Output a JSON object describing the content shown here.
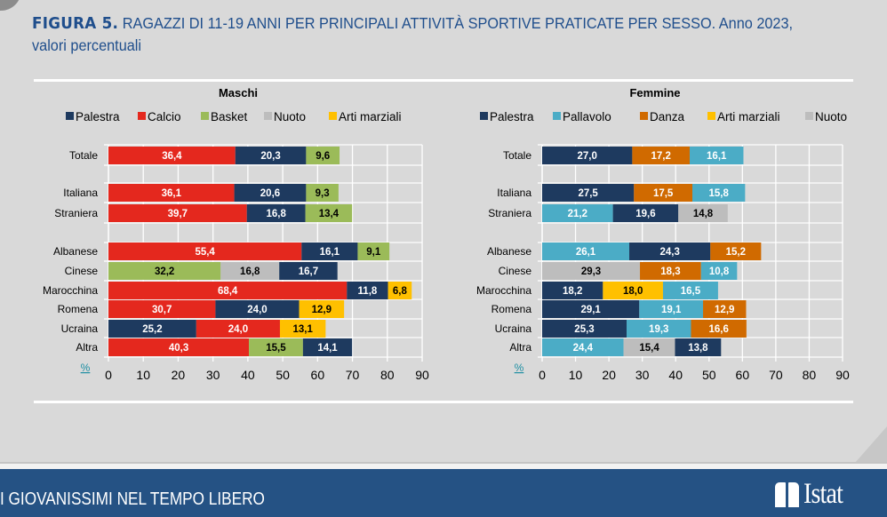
{
  "header": {
    "figure_label": "FIGURA 5.",
    "title_caps": "RAGAZZI DI 11-19 ANNI PER PRINCIPALI ATTIVITÀ SPORTIVE PRATICATE PER SESSO.",
    "title_tail": "Anno 2023,",
    "subtitle": "valori percentuali"
  },
  "footer": {
    "section_title": "I GIOVANISSIMI NEL TEMPO LIBERO",
    "logo_text": "Istat"
  },
  "colors": {
    "title": "#1f4e8c",
    "footer_bg": "#255284",
    "Palestra": "#1e3a5f",
    "Calcio": "#e4281e",
    "Basket": "#9bbb59",
    "Nuoto": "#bdbdbd",
    "Arti marziali": "#ffc000",
    "Pallavolo": "#4bacc6",
    "Danza": "#d06a00"
  },
  "chart_data": [
    {
      "type": "bar",
      "orientation": "horizontal",
      "stacked": true,
      "title": "Maschi",
      "legend": [
        "Palestra",
        "Calcio",
        "Basket",
        "Nuoto",
        "Arti marziali"
      ],
      "legend_position": "top",
      "xlabel": "%",
      "xlim": [
        0,
        90
      ],
      "xticks": [
        0,
        10,
        20,
        30,
        40,
        50,
        60,
        70,
        80,
        90
      ],
      "grid": true,
      "categories": [
        "Totale",
        "",
        "Italiana",
        "Straniera",
        "",
        "Albanese",
        "Cinese",
        "Marocchina",
        "Romena",
        "Ucraina",
        "Altra"
      ],
      "rows": [
        {
          "category": "Totale",
          "segments": [
            {
              "series": "Calcio",
              "value": 36.4,
              "label": "36,4"
            },
            {
              "series": "Palestra",
              "value": 20.3,
              "label": "20,3"
            },
            {
              "series": "Basket",
              "value": 9.6,
              "label": "9,6"
            }
          ]
        },
        {
          "category": "",
          "segments": []
        },
        {
          "category": "Italiana",
          "segments": [
            {
              "series": "Calcio",
              "value": 36.1,
              "label": "36,1"
            },
            {
              "series": "Palestra",
              "value": 20.6,
              "label": "20,6"
            },
            {
              "series": "Basket",
              "value": 9.3,
              "label": "9,3"
            }
          ]
        },
        {
          "category": "Straniera",
          "segments": [
            {
              "series": "Calcio",
              "value": 39.7,
              "label": "39,7"
            },
            {
              "series": "Palestra",
              "value": 16.8,
              "label": "16,8"
            },
            {
              "series": "Basket",
              "value": 13.4,
              "label": "13,4"
            }
          ]
        },
        {
          "category": "",
          "segments": []
        },
        {
          "category": "Albanese",
          "segments": [
            {
              "series": "Calcio",
              "value": 55.4,
              "label": "55,4"
            },
            {
              "series": "Palestra",
              "value": 16.1,
              "label": "16,1"
            },
            {
              "series": "Basket",
              "value": 9.1,
              "label": "9,1"
            }
          ]
        },
        {
          "category": "Cinese",
          "segments": [
            {
              "series": "Basket",
              "value": 32.2,
              "label": "32,2"
            },
            {
              "series": "Nuoto",
              "value": 16.8,
              "label": "16,8"
            },
            {
              "series": "Palestra",
              "value": 16.7,
              "label": "16,7"
            }
          ]
        },
        {
          "category": "Marocchina",
          "segments": [
            {
              "series": "Calcio",
              "value": 68.4,
              "label": "68,4"
            },
            {
              "series": "Palestra",
              "value": 11.8,
              "label": "11,8"
            },
            {
              "series": "Arti marziali",
              "value": 6.8,
              "label": "6,8"
            }
          ]
        },
        {
          "category": "Romena",
          "segments": [
            {
              "series": "Calcio",
              "value": 30.7,
              "label": "30,7"
            },
            {
              "series": "Palestra",
              "value": 24.0,
              "label": "24,0"
            },
            {
              "series": "Arti marziali",
              "value": 12.9,
              "label": "12,9"
            }
          ]
        },
        {
          "category": "Ucraina",
          "segments": [
            {
              "series": "Palestra",
              "value": 25.2,
              "label": "25,2"
            },
            {
              "series": "Calcio",
              "value": 24.0,
              "label": "24,0"
            },
            {
              "series": "Arti marziali",
              "value": 13.1,
              "label": "13,1"
            }
          ]
        },
        {
          "category": "Altra",
          "segments": [
            {
              "series": "Calcio",
              "value": 40.3,
              "label": "40,3"
            },
            {
              "series": "Basket",
              "value": 15.5,
              "label": "15,5"
            },
            {
              "series": "Palestra",
              "value": 14.1,
              "label": "14,1"
            }
          ]
        }
      ]
    },
    {
      "type": "bar",
      "orientation": "horizontal",
      "stacked": true,
      "title": "Femmine",
      "legend": [
        "Palestra",
        "Pallavolo",
        "Danza",
        "Arti marziali",
        "Nuoto"
      ],
      "legend_position": "top",
      "xlabel": "%",
      "xlim": [
        0,
        90
      ],
      "xticks": [
        0,
        10,
        20,
        30,
        40,
        50,
        60,
        70,
        80,
        90
      ],
      "grid": true,
      "categories": [
        "Totale",
        "",
        "Italiana",
        "Straniera",
        "",
        "Albanese",
        "Cinese",
        "Marocchina",
        "Romena",
        "Ucraina",
        "Altra"
      ],
      "rows": [
        {
          "category": "Totale",
          "segments": [
            {
              "series": "Palestra",
              "value": 27.0,
              "label": "27,0"
            },
            {
              "series": "Danza",
              "value": 17.2,
              "label": "17,2"
            },
            {
              "series": "Pallavolo",
              "value": 16.1,
              "label": "16,1"
            }
          ]
        },
        {
          "category": "",
          "segments": []
        },
        {
          "category": "Italiana",
          "segments": [
            {
              "series": "Palestra",
              "value": 27.5,
              "label": "27,5"
            },
            {
              "series": "Danza",
              "value": 17.5,
              "label": "17,5"
            },
            {
              "series": "Pallavolo",
              "value": 15.8,
              "label": "15,8"
            }
          ]
        },
        {
          "category": "Straniera",
          "segments": [
            {
              "series": "Pallavolo",
              "value": 21.2,
              "label": "21,2"
            },
            {
              "series": "Palestra",
              "value": 19.6,
              "label": "19,6"
            },
            {
              "series": "Nuoto",
              "value": 14.8,
              "label": "14,8"
            }
          ]
        },
        {
          "category": "",
          "segments": []
        },
        {
          "category": "Albanese",
          "segments": [
            {
              "series": "Pallavolo",
              "value": 26.1,
              "label": "26,1"
            },
            {
              "series": "Palestra",
              "value": 24.3,
              "label": "24,3"
            },
            {
              "series": "Danza",
              "value": 15.2,
              "label": "15,2"
            }
          ]
        },
        {
          "category": "Cinese",
          "segments": [
            {
              "series": "Nuoto",
              "value": 29.3,
              "label": "29,3"
            },
            {
              "series": "Danza",
              "value": 18.3,
              "label": "18,3"
            },
            {
              "series": "Pallavolo",
              "value": 10.8,
              "label": "10,8"
            }
          ]
        },
        {
          "category": "Marocchina",
          "segments": [
            {
              "series": "Palestra",
              "value": 18.2,
              "label": "18,2"
            },
            {
              "series": "Arti marziali",
              "value": 18.0,
              "label": "18,0"
            },
            {
              "series": "Pallavolo",
              "value": 16.5,
              "label": "16,5"
            }
          ]
        },
        {
          "category": "Romena",
          "segments": [
            {
              "series": "Palestra",
              "value": 29.1,
              "label": "29,1"
            },
            {
              "series": "Pallavolo",
              "value": 19.1,
              "label": "19,1"
            },
            {
              "series": "Danza",
              "value": 12.9,
              "label": "12,9"
            }
          ]
        },
        {
          "category": "Ucraina",
          "segments": [
            {
              "series": "Palestra",
              "value": 25.3,
              "label": "25,3"
            },
            {
              "series": "Pallavolo",
              "value": 19.3,
              "label": "19,3"
            },
            {
              "series": "Danza",
              "value": 16.6,
              "label": "16,6"
            }
          ]
        },
        {
          "category": "Altra",
          "segments": [
            {
              "series": "Pallavolo",
              "value": 24.4,
              "label": "24,4"
            },
            {
              "series": "Nuoto",
              "value": 15.4,
              "label": "15,4"
            },
            {
              "series": "Palestra",
              "value": 13.8,
              "label": "13,8"
            }
          ]
        }
      ]
    }
  ]
}
